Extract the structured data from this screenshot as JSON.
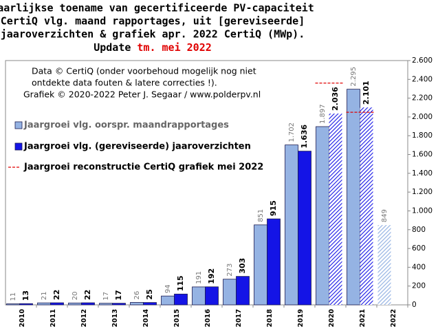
{
  "chart_data": {
    "type": "bar",
    "title": [
      "Jaarlijkse  toename van gecertificeerde PV-capaciteit",
      "CertiQ vlg. maand rapportages, uit [gereviseerde]",
      "jaaroverzichten & grafiek apr. 2022 CertiQ (MWp)."
    ],
    "title_last": "Update",
    "title_highlight": "tm. mei 2022",
    "annotation": [
      "Data © CertiQ (onder voorbehoud mogelijk  nog niet",
      "ontdekte data fouten & latere correcties !).",
      "Grafiek  © 2020-2022 Peter J. Segaar / www.polderpv.nl"
    ],
    "categories": [
      "2010",
      "2011",
      "2012",
      "2013",
      "2014",
      "2015",
      "2016",
      "2017",
      "2018",
      "2019",
      "2020",
      "2021",
      "2022"
    ],
    "series": [
      {
        "name": "Jaargroei vlg. oorspr. maandrapportages",
        "color": "#95b3e3",
        "kind": "bar",
        "values": [
          11,
          21,
          20,
          17,
          26,
          94,
          191,
          273,
          851,
          1702,
          1897,
          2295,
          849
        ],
        "value_labels": [
          "11",
          "21",
          "20",
          "17",
          "26",
          "94",
          "191",
          "273",
          "851",
          "1.702",
          "1.897",
          "2.295",
          "849"
        ],
        "hatched": [
          false,
          false,
          false,
          false,
          false,
          false,
          false,
          false,
          false,
          false,
          false,
          false,
          true
        ]
      },
      {
        "name": "Jaargroei vlg. (gereviseerde) jaaroverzichten",
        "color": "#1414e6",
        "kind": "bar",
        "values": [
          13,
          22,
          22,
          17,
          25,
          115,
          192,
          303,
          915,
          1636,
          2036,
          2101,
          null
        ],
        "value_labels": [
          "13",
          "22",
          "22",
          "17",
          "25",
          "115",
          "192",
          "303",
          "915",
          "1.636",
          "2.036",
          "2.101",
          null
        ],
        "hatched": [
          false,
          false,
          false,
          false,
          false,
          false,
          false,
          false,
          false,
          false,
          true,
          true,
          false
        ]
      },
      {
        "name": "Jaargroei reconstructie CertiQ grafiek mei 2022",
        "color": "#e00000",
        "kind": "dash",
        "values": [
          null,
          null,
          null,
          null,
          null,
          null,
          null,
          null,
          null,
          null,
          2360,
          2050,
          null
        ]
      }
    ],
    "ylim": [
      0,
      2600
    ],
    "yticks": [
      0,
      200,
      400,
      600,
      800,
      {
        "value": 1000,
        "label": "1.000"
      },
      {
        "value": 1200,
        "label": "1.200"
      },
      {
        "value": 1400,
        "label": "1.400"
      },
      {
        "value": 1600,
        "label": "1.600"
      },
      {
        "value": 1800,
        "label": "1.800"
      },
      {
        "value": 2000,
        "label": "2.000"
      },
      {
        "value": 2200,
        "label": "2.200"
      },
      {
        "value": 2400,
        "label": "2.400"
      },
      {
        "value": 2600,
        "label": "2.600"
      }
    ],
    "grid": false
  }
}
